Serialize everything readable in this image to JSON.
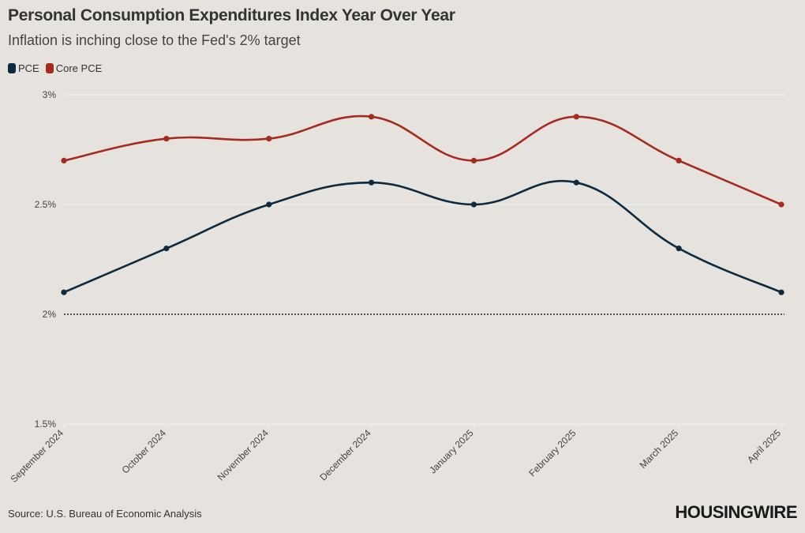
{
  "chart_data": {
    "type": "line",
    "title": "Personal Consumption Expenditures Index Year Over Year",
    "subtitle": "Inflation is inching close to the Fed's 2% target",
    "categories": [
      "September 2024",
      "October 2024",
      "November 2024",
      "December 2024",
      "January 2025",
      "February 2025",
      "March 2025",
      "April 2025"
    ],
    "series": [
      {
        "name": "PCE",
        "color": "#0d2b3e",
        "values": [
          2.1,
          2.3,
          2.5,
          2.6,
          2.5,
          2.6,
          2.3,
          2.1
        ]
      },
      {
        "name": "Core PCE",
        "color": "#a52a1f",
        "values": [
          2.7,
          2.8,
          2.8,
          2.9,
          2.7,
          2.9,
          2.7,
          2.5
        ]
      }
    ],
    "ylim": [
      1.5,
      3
    ],
    "yticks": [
      1.5,
      2,
      2.5,
      3
    ],
    "ytick_labels": [
      "1.5%",
      "2%",
      "2.5%",
      "3%"
    ],
    "reference_line": {
      "value": 2,
      "style": "dotted"
    },
    "source": "Source: U.S. Bureau of Economic Analysis",
    "brand": "HOUSINGWIRE"
  }
}
